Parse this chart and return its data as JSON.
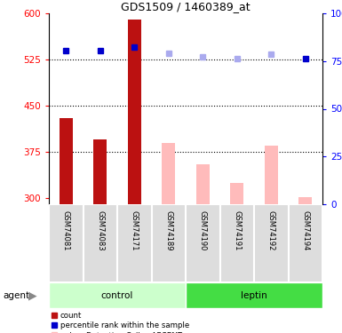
{
  "title": "GDS1509 / 1460389_at",
  "samples": [
    "GSM74081",
    "GSM74083",
    "GSM74171",
    "GSM74189",
    "GSM74190",
    "GSM74191",
    "GSM74192",
    "GSM74194"
  ],
  "bar_values": [
    430,
    395,
    590,
    390,
    355,
    325,
    385,
    302
  ],
  "bar_absent": [
    false,
    false,
    false,
    true,
    true,
    true,
    true,
    true
  ],
  "rank_values": [
    540,
    540,
    545,
    535,
    530,
    527,
    533,
    527
  ],
  "rank_absent": [
    false,
    false,
    false,
    true,
    true,
    true,
    true,
    false
  ],
  "ylim_left": [
    290,
    600
  ],
  "ylim_right": [
    0,
    100
  ],
  "yticks_left": [
    300,
    375,
    450,
    525,
    600
  ],
  "yticks_right": [
    0,
    25,
    50,
    75,
    100
  ],
  "grid_values": [
    375,
    450,
    525
  ],
  "bar_color_present": "#bb1111",
  "bar_color_absent": "#ffbbbb",
  "rank_color_present": "#0000cc",
  "rank_color_absent": "#aaaaee",
  "control_color_light": "#ccffcc",
  "control_color_dark": "#44dd44",
  "sample_bg_color": "#dddddd",
  "n_control": 4,
  "n_leptin": 4
}
